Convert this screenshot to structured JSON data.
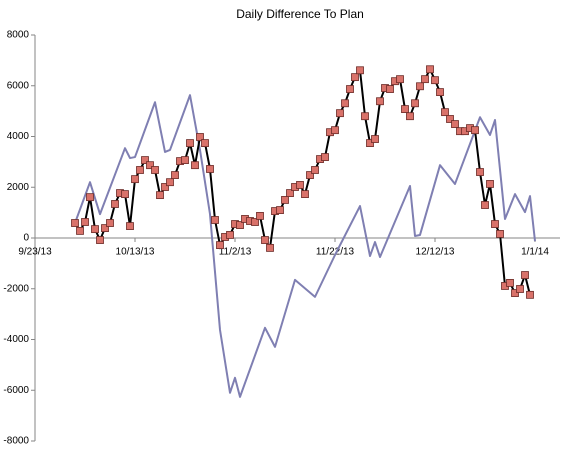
{
  "chart_data": {
    "type": "line",
    "title": "Daily Difference To Plan",
    "xlim": [
      "9/23/13",
      "1/6/14"
    ],
    "xticks": [
      "9/23/13",
      "10/13/13",
      "11/2/13",
      "11/22/13",
      "12/12/13",
      "1/1/14"
    ],
    "ylim": [
      -8000,
      8000
    ],
    "yticks": [
      -8000,
      -6000,
      -4000,
      -2000,
      0,
      2000,
      4000,
      6000,
      8000
    ],
    "grid": false,
    "series": [
      {
        "color": "#7f7fb2",
        "marker": false,
        "x": [
          "10/1/13",
          "10/4/13",
          "10/6/13",
          "10/11/13",
          "10/12/13",
          "10/13/13",
          "10/17/13",
          "10/19/13",
          "10/20/13",
          "10/24/13",
          "10/26/13",
          "10/28/13",
          "10/30/13",
          "11/1/13",
          "11/2/13",
          "11/3/13",
          "11/8/13",
          "11/10/13",
          "11/14/13",
          "11/18/13",
          "11/22/13",
          "11/27/13",
          "11/29/13",
          "11/30/13",
          "12/1/13",
          "12/7/13",
          "12/8/13",
          "12/9/13",
          "12/13/13",
          "12/16/13",
          "12/21/13",
          "12/23/13",
          "12/24/13",
          "12/26/13",
          "12/28/13",
          "12/30/13",
          "12/31/13",
          "1/1/14"
        ],
        "values": [
          590,
          2200,
          940,
          3540,
          3150,
          3190,
          5350,
          3390,
          3470,
          5630,
          3470,
          940,
          -3620,
          -6100,
          -5510,
          -6260,
          -3540,
          -4290,
          -1650,
          -2320,
          -670,
          1260,
          -710,
          -160,
          -750,
          2050,
          80,
          120,
          2870,
          2130,
          4760,
          4060,
          4650,
          750,
          1730,
          1020,
          1650,
          -120
        ]
      },
      {
        "color": "#000000",
        "marker": true,
        "marker_color": "#d9726a",
        "x": [
          "10/1/13",
          "10/2/13",
          "10/3/13",
          "10/4/13",
          "10/5/13",
          "10/6/13",
          "10/7/13",
          "10/8/13",
          "10/9/13",
          "10/10/13",
          "10/11/13",
          "10/12/13",
          "10/13/13",
          "10/14/13",
          "10/15/13",
          "10/16/13",
          "10/17/13",
          "10/18/13",
          "10/19/13",
          "10/20/13",
          "10/21/13",
          "10/22/13",
          "10/23/13",
          "10/24/13",
          "10/25/13",
          "10/26/13",
          "10/27/13",
          "10/28/13",
          "10/29/13",
          "10/30/13",
          "10/31/13",
          "11/1/13",
          "11/2/13",
          "11/3/13",
          "11/4/13",
          "11/5/13",
          "11/6/13",
          "11/7/13",
          "11/8/13",
          "11/9/13",
          "11/10/13",
          "11/11/13",
          "11/12/13",
          "11/13/13",
          "11/14/13",
          "11/15/13",
          "11/16/13",
          "11/17/13",
          "11/18/13",
          "11/19/13",
          "11/20/13",
          "11/21/13",
          "11/22/13",
          "11/23/13",
          "11/24/13",
          "11/25/13",
          "11/26/13",
          "11/27/13",
          "11/28/13",
          "11/29/13",
          "11/30/13",
          "12/1/13",
          "12/2/13",
          "12/3/13",
          "12/4/13",
          "12/5/13",
          "12/6/13",
          "12/7/13",
          "12/8/13",
          "12/9/13",
          "12/10/13",
          "12/11/13",
          "12/12/13",
          "12/13/13",
          "12/14/13",
          "12/15/13",
          "12/16/13",
          "12/17/13",
          "12/18/13",
          "12/19/13",
          "12/20/13",
          "12/21/13",
          "12/22/13",
          "12/23/13",
          "12/24/13",
          "12/25/13",
          "12/26/13",
          "12/27/13",
          "12/28/13",
          "12/29/13",
          "12/30/13",
          "12/31/13"
        ],
        "values": [
          590,
          280,
          630,
          1610,
          350,
          -80,
          390,
          590,
          1340,
          1770,
          1730,
          470,
          2320,
          2680,
          3070,
          2870,
          2680,
          1690,
          2010,
          2200,
          2480,
          3030,
          3070,
          3740,
          2870,
          3980,
          3740,
          2720,
          710,
          -280,
          40,
          120,
          550,
          510,
          750,
          670,
          630,
          870,
          -80,
          -390,
          1060,
          1100,
          1500,
          1770,
          2010,
          2090,
          1730,
          2480,
          2680,
          3110,
          3190,
          4170,
          4250,
          4920,
          5310,
          5870,
          6340,
          6610,
          4800,
          3740,
          3900,
          5390,
          5910,
          5870,
          6180,
          6260,
          5080,
          4800,
          5310,
          5980,
          6260,
          6650,
          6220,
          5750,
          4960,
          4690,
          4490,
          4210,
          4210,
          4330,
          4250,
          2600,
          1300,
          2130,
          550,
          160,
          -1890,
          -1770,
          -2170,
          -2010,
          -1460,
          -2240
        ]
      }
    ]
  }
}
